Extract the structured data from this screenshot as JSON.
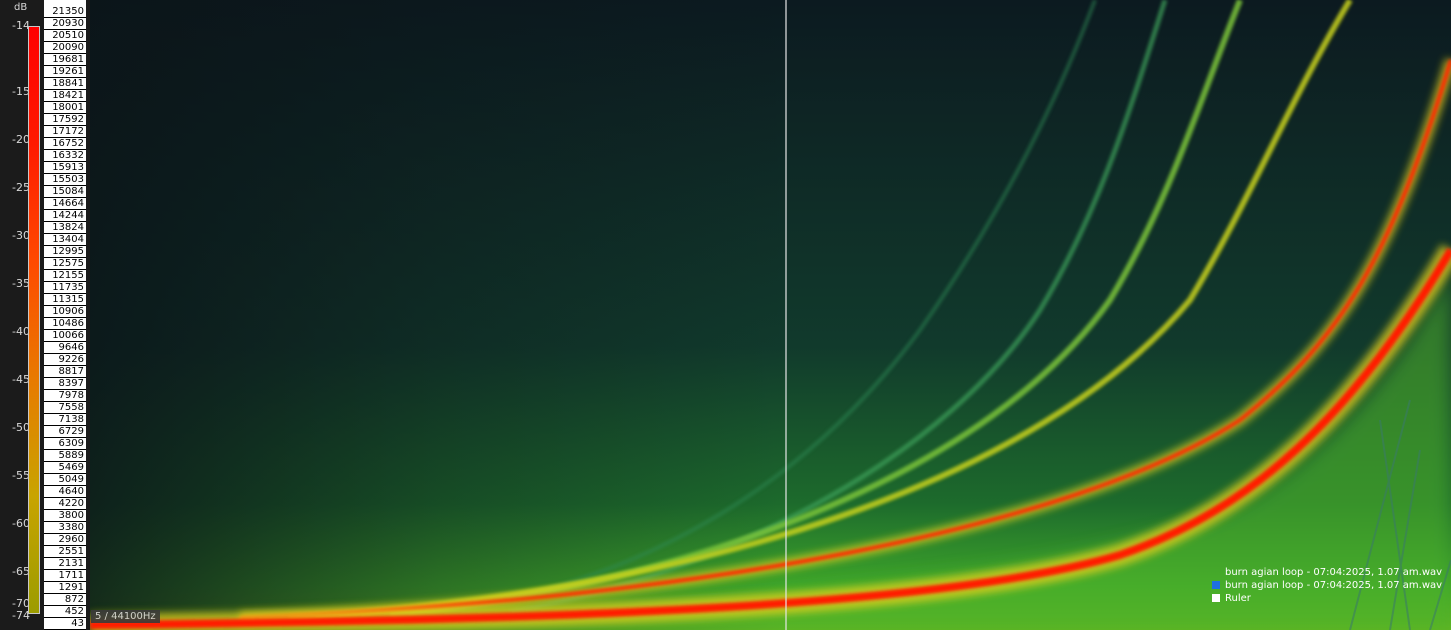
{
  "meter": {
    "unit": "dB",
    "ticks": [
      "-14",
      "-15",
      "-20",
      "-25",
      "-30",
      "-35",
      "-40",
      "-45",
      "-50",
      "-55",
      "-60",
      "-65",
      "-70",
      "-74"
    ],
    "gradient": [
      "#ff0000",
      "#ff1a00",
      "#ff4a00",
      "#e87a00",
      "#c8a400",
      "#9c9c00"
    ]
  },
  "frequency_scale": [
    "21350",
    "20930",
    "20510",
    "20090",
    "19681",
    "19261",
    "18841",
    "18421",
    "18001",
    "17592",
    "17172",
    "16752",
    "16332",
    "15913",
    "15503",
    "15084",
    "14664",
    "14244",
    "13824",
    "13404",
    "12995",
    "12575",
    "12155",
    "11735",
    "11315",
    "10906",
    "10486",
    "10066",
    "9646",
    "9226",
    "8817",
    "8397",
    "7978",
    "7558",
    "7138",
    "6729",
    "6309",
    "5889",
    "5469",
    "5049",
    "4640",
    "4220",
    "3800",
    "3380",
    "2960",
    "2551",
    "2131",
    "1711",
    "1291",
    "872",
    "452",
    "43"
  ],
  "status": {
    "sample_rate_label": "5 / 44100Hz"
  },
  "legend": [
    {
      "label": "burn agian loop - 07:04:2025, 1.07 am.wav",
      "color": "",
      "icon": "none"
    },
    {
      "label": "burn agian loop - 07:04:2025, 1.07 am.wav",
      "color": "#1e6fe0",
      "icon": "square"
    },
    {
      "label": "Ruler",
      "color": "#ffffff",
      "icon": "square"
    }
  ],
  "colors": {
    "background": "#0d1a1f",
    "cursor": "#e6e6e6",
    "peak": "#ff1a00",
    "mid": "#e6d21a",
    "low": "#2f9a2a"
  }
}
